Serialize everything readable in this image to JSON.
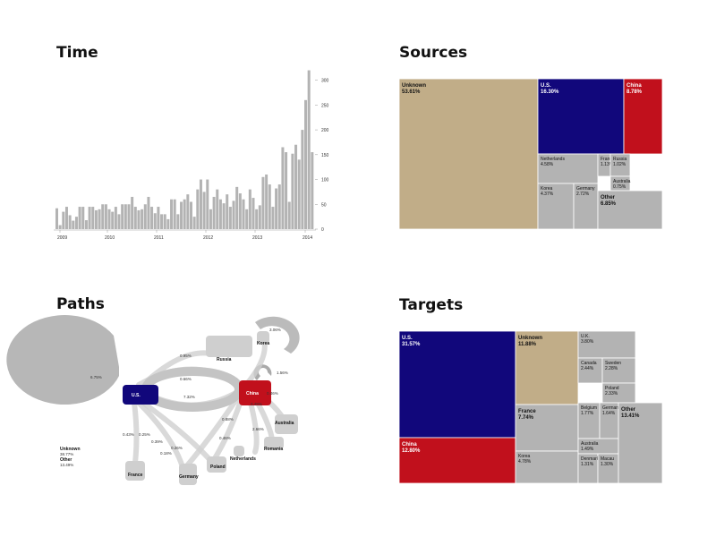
{
  "titles": {
    "time": "Time",
    "sources": "Sources",
    "paths": "Paths",
    "targets": "Targets"
  },
  "chart_data": [
    {
      "id": "time",
      "type": "bar",
      "title": "Time",
      "x_ticks": [
        "2009",
        "2010",
        "2011",
        "2012",
        "2013",
        "2014"
      ],
      "y_ticks": [
        0,
        50,
        100,
        150,
        200,
        250,
        300
      ],
      "ylim": [
        0,
        330
      ],
      "grid": false,
      "axis_side": "right",
      "values": [
        42,
        8,
        35,
        45,
        28,
        17,
        25,
        45,
        45,
        18,
        45,
        45,
        38,
        40,
        50,
        50,
        40,
        35,
        45,
        30,
        50,
        50,
        50,
        65,
        45,
        38,
        40,
        50,
        65,
        45,
        32,
        45,
        30,
        30,
        20,
        60,
        60,
        30,
        55,
        60,
        70,
        55,
        25,
        80,
        100,
        75,
        100,
        40,
        65,
        80,
        60,
        52,
        70,
        45,
        57,
        85,
        72,
        60,
        40,
        80,
        63,
        40,
        48,
        105,
        110,
        90,
        45,
        82,
        90,
        165,
        155,
        55,
        152,
        170,
        140,
        200,
        260,
        320,
        155
      ]
    },
    {
      "id": "sources",
      "type": "treemap",
      "title": "Sources",
      "items": [
        {
          "name": "Unknown",
          "value": 53.61,
          "label": "53.61%",
          "color": "#c1ad88"
        },
        {
          "name": "U.S.",
          "value": 16.3,
          "label": "16.30%",
          "color": "#11077b"
        },
        {
          "name": "China",
          "value": 8.78,
          "label": "8.78%",
          "color": "#c1101c"
        },
        {
          "name": "Netherlands",
          "value": 4.58,
          "label": "4.58%",
          "color": "#b3b3b3"
        },
        {
          "name": "France",
          "value": 1.13,
          "label": "1.13%",
          "color": "#b3b3b3"
        },
        {
          "name": "Russia",
          "value": 1.02,
          "label": "1.02%",
          "color": "#b3b3b3"
        },
        {
          "name": "Australia",
          "value": 0.75,
          "label": "0.75%",
          "color": "#b3b3b3"
        },
        {
          "name": "Korea",
          "value": 4.37,
          "label": "4.37%",
          "color": "#b3b3b3"
        },
        {
          "name": "Germany",
          "value": 2.72,
          "label": "2.72%",
          "color": "#b3b3b3"
        },
        {
          "name": "Other",
          "value": 6.85,
          "label": "6.85%",
          "color": "#b3b3b3"
        }
      ]
    },
    {
      "id": "targets",
      "type": "treemap",
      "title": "Targets",
      "items": [
        {
          "name": "U.S.",
          "value": 31.57,
          "label": "31.57%",
          "color": "#11077b"
        },
        {
          "name": "China",
          "value": 12.8,
          "label": "12.80%",
          "color": "#c1101c"
        },
        {
          "name": "Unknown",
          "value": 11.88,
          "label": "11.88%",
          "color": "#c1ad88"
        },
        {
          "name": "France",
          "value": 7.74,
          "label": "7.74%",
          "color": "#b3b3b3"
        },
        {
          "name": "Korea",
          "value": 4.78,
          "label": "4.78%",
          "color": "#b3b3b3"
        },
        {
          "name": "U.K.",
          "value": 3.8,
          "label": "3.80%",
          "color": "#b3b3b3"
        },
        {
          "name": "Canada",
          "value": 2.44,
          "label": "2.44%",
          "color": "#b3b3b3"
        },
        {
          "name": "Sweden",
          "value": 2.28,
          "label": "2.28%",
          "color": "#b3b3b3"
        },
        {
          "name": "Poland",
          "value": 2.33,
          "label": "2.33%",
          "color": "#b3b3b3"
        },
        {
          "name": "Belgium",
          "value": 1.77,
          "label": "1.77%",
          "color": "#b3b3b3"
        },
        {
          "name": "Germany",
          "value": 1.64,
          "label": "1.64%",
          "color": "#b3b3b3"
        },
        {
          "name": "Australia",
          "value": 1.49,
          "label": "1.49%",
          "color": "#b3b3b3"
        },
        {
          "name": "Denmark",
          "value": 1.31,
          "label": "1.31%",
          "color": "#b3b3b3"
        },
        {
          "name": "Macau",
          "value": 1.3,
          "label": "1.30%",
          "color": "#b3b3b3"
        },
        {
          "name": "Other",
          "value": 13.41,
          "label": "13.41%",
          "color": "#b3b3b3"
        }
      ]
    },
    {
      "id": "paths",
      "type": "flow-map",
      "title": "Paths",
      "nodes": [
        "U.S.",
        "China",
        "Russia",
        "Korea",
        "France",
        "Germany",
        "Poland",
        "Netherlands",
        "Romania",
        "Australia"
      ],
      "legend": [
        {
          "name": "Unknown",
          "label": "38.77%"
        },
        {
          "name": "Other",
          "label": "13.49%"
        }
      ],
      "self_loops": [
        {
          "node": "U.S.",
          "label": "6.75%"
        },
        {
          "node": "China",
          "label": "1.56%"
        },
        {
          "node": "Korea",
          "label": "3.06%"
        }
      ],
      "flow_labels": [
        "0.95%",
        "0.66%",
        "7.32%",
        "0.46%",
        "0.43%",
        "0.25%",
        "0.39%",
        "0.18%",
        "0.88%",
        "0.46%",
        "2.66%",
        "0.49%",
        "0.26%"
      ]
    }
  ]
}
